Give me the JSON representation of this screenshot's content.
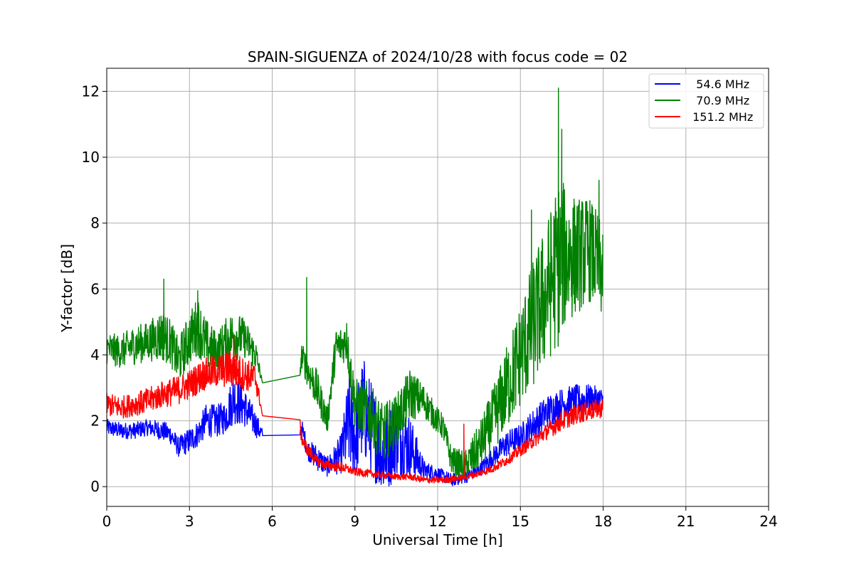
{
  "chart_data": {
    "type": "line",
    "title": "SPAIN-SIGUENZA of 2024/10/28 with focus code = 02",
    "xlabel": "Universal Time [h]",
    "ylabel": "Y-factor [dB]",
    "xlim": [
      0,
      24
    ],
    "ylim": [
      -0.6,
      12.7
    ],
    "xticks": [
      "0",
      "3",
      "6",
      "9",
      "12",
      "15",
      "18",
      "21",
      "24"
    ],
    "yticks": [
      "0",
      "2",
      "4",
      "6",
      "8",
      "10",
      "12"
    ],
    "grid": true,
    "legend_position": "top-right",
    "series": [
      {
        "name": "  54.6 MHz",
        "color": "#0000ff",
        "x": [
          0.0,
          0.5,
          1.0,
          1.5,
          2.0,
          2.3,
          2.6,
          3.0,
          3.3,
          3.6,
          4.0,
          4.3,
          4.6,
          5.0,
          5.4,
          5.65,
          7.0,
          7.05,
          7.3,
          7.6,
          8.0,
          8.5,
          8.8,
          9.0,
          9.3,
          9.6,
          10.0,
          10.5,
          11.0,
          11.5,
          12.0,
          12.5,
          13.0,
          13.5,
          14.0,
          14.5,
          15.0,
          15.5,
          16.0,
          16.5,
          17.0,
          17.5,
          18.0
        ],
        "y": [
          1.8,
          1.7,
          1.7,
          1.8,
          1.7,
          1.6,
          1.2,
          1.4,
          1.6,
          2.0,
          2.0,
          2.1,
          2.7,
          2.4,
          1.9,
          1.55,
          1.55,
          1.8,
          1.1,
          0.9,
          0.6,
          1.0,
          2.0,
          1.5,
          2.4,
          1.8,
          0.9,
          1.6,
          1.2,
          0.5,
          0.4,
          0.2,
          0.3,
          0.5,
          0.9,
          1.3,
          1.5,
          1.9,
          2.3,
          2.5,
          2.6,
          2.7,
          2.6
        ],
        "amplitude": [
          0.25,
          0.25,
          0.25,
          0.25,
          0.3,
          0.3,
          0.3,
          0.4,
          0.4,
          0.5,
          0.5,
          0.5,
          0.8,
          0.6,
          0.4,
          0.2,
          0.0,
          0.3,
          0.3,
          0.4,
          0.3,
          0.6,
          1.6,
          1.3,
          1.6,
          1.4,
          1.3,
          1.3,
          1.0,
          0.3,
          0.2,
          0.2,
          0.2,
          0.2,
          0.3,
          0.4,
          0.4,
          0.5,
          0.5,
          0.5,
          0.5,
          0.4,
          0.4
        ]
      },
      {
        "name": "  70.9 MHz",
        "color": "#008000",
        "x": [
          0.0,
          0.5,
          1.0,
          1.5,
          2.0,
          2.3,
          2.6,
          3.0,
          3.3,
          3.6,
          4.0,
          4.3,
          4.6,
          5.0,
          5.4,
          5.65,
          7.0,
          7.05,
          7.3,
          7.6,
          8.0,
          8.3,
          8.7,
          9.0,
          9.5,
          10.0,
          10.5,
          11.0,
          11.5,
          12.0,
          12.2,
          12.5,
          13.0,
          13.5,
          14.0,
          14.5,
          15.0,
          15.5,
          16.0,
          16.4,
          16.6,
          17.0,
          17.5,
          18.0
        ],
        "y": [
          4.2,
          4.1,
          4.3,
          4.4,
          4.6,
          4.4,
          3.8,
          4.5,
          4.9,
          4.3,
          4.1,
          4.4,
          4.6,
          4.5,
          4.0,
          3.15,
          3.2,
          4.0,
          3.5,
          3.0,
          2.0,
          4.2,
          4.4,
          2.5,
          2.3,
          1.6,
          2.0,
          2.8,
          2.6,
          2.0,
          1.8,
          0.8,
          0.6,
          1.2,
          2.0,
          3.0,
          4.0,
          5.0,
          6.0,
          6.8,
          7.0,
          7.0,
          7.2,
          6.5
        ],
        "amplitude": [
          0.5,
          0.5,
          0.6,
          0.6,
          0.8,
          0.7,
          0.7,
          0.8,
          0.9,
          0.8,
          0.6,
          0.7,
          0.8,
          0.6,
          0.5,
          0.0,
          0.0,
          0.4,
          0.5,
          0.6,
          0.4,
          0.6,
          0.6,
          0.8,
          0.9,
          0.9,
          0.8,
          0.8,
          0.5,
          0.4,
          0.4,
          0.4,
          0.5,
          0.7,
          1.0,
          1.3,
          1.6,
          2.0,
          2.2,
          2.6,
          2.2,
          1.8,
          1.6,
          1.5
        ]
      },
      {
        "name": " 151.2 MHz",
        "color": "#ff0000",
        "x": [
          0.0,
          0.5,
          1.0,
          1.5,
          2.0,
          2.5,
          3.0,
          3.5,
          4.0,
          4.5,
          5.0,
          5.4,
          5.65,
          7.0,
          7.05,
          7.3,
          7.6,
          8.0,
          8.5,
          9.0,
          9.5,
          10.0,
          10.5,
          11.0,
          11.5,
          12.0,
          12.5,
          13.0,
          13.5,
          14.0,
          14.5,
          15.0,
          15.5,
          16.0,
          16.5,
          17.0,
          17.5,
          18.0
        ],
        "y": [
          2.5,
          2.4,
          2.5,
          2.6,
          2.8,
          2.9,
          3.1,
          3.4,
          3.5,
          3.6,
          3.4,
          3.3,
          2.15,
          2.1,
          1.5,
          1.1,
          0.8,
          0.65,
          0.6,
          0.45,
          0.4,
          0.35,
          0.3,
          0.3,
          0.2,
          0.2,
          0.22,
          0.3,
          0.4,
          0.55,
          0.8,
          1.1,
          1.4,
          1.7,
          2.0,
          2.2,
          2.3,
          2.4
        ],
        "amplitude": [
          0.35,
          0.35,
          0.35,
          0.4,
          0.4,
          0.45,
          0.45,
          0.5,
          0.5,
          0.6,
          0.5,
          0.45,
          0.0,
          0.0,
          0.2,
          0.2,
          0.15,
          0.15,
          0.15,
          0.12,
          0.12,
          0.1,
          0.1,
          0.1,
          0.1,
          0.1,
          0.1,
          0.1,
          0.1,
          0.12,
          0.15,
          0.18,
          0.2,
          0.25,
          0.3,
          0.3,
          0.3,
          0.3
        ]
      }
    ],
    "spikes": [
      {
        "series": 1,
        "x": 2.07,
        "y": 6.3
      },
      {
        "series": 1,
        "x": 3.3,
        "y": 5.95
      },
      {
        "series": 1,
        "x": 7.25,
        "y": 6.35
      },
      {
        "series": 1,
        "x": 8.7,
        "y": 4.95
      },
      {
        "series": 1,
        "x": 15.4,
        "y": 8.4
      },
      {
        "series": 1,
        "x": 16.38,
        "y": 12.1
      },
      {
        "series": 1,
        "x": 16.5,
        "y": 10.85
      },
      {
        "series": 1,
        "x": 17.85,
        "y": 9.3
      },
      {
        "series": 2,
        "x": 4.6,
        "y": 4.6
      },
      {
        "series": 2,
        "x": 12.95,
        "y": 1.9
      }
    ]
  }
}
